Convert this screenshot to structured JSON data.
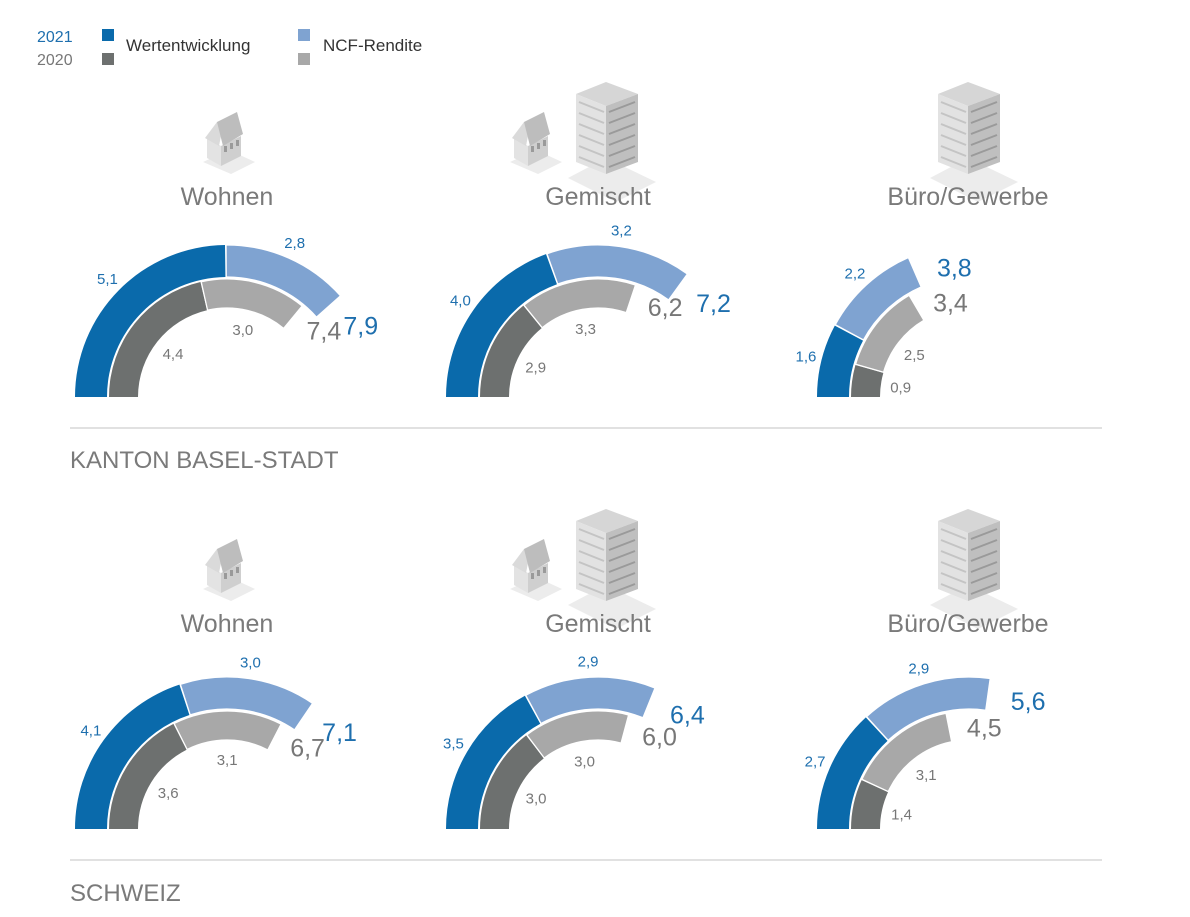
{
  "legend": {
    "year_current": "2021",
    "year_previous": "2020",
    "value_change_label": "Wertentwicklung",
    "ncf_label": "NCF-Rendite"
  },
  "colors": {
    "value_2021": "#0a6aab",
    "ncf_2021": "#7fa3d1",
    "value_2020": "#6d706f",
    "ncf_2020": "#a8a8a8",
    "label_2021": "#1e6fae",
    "label_2020": "#777777",
    "title": "#7a7a7a",
    "rule": "#cfcfcf"
  },
  "chart_data": [
    {
      "type": "radial-bar",
      "section": "KANTON BASEL-STADT",
      "title": "Wohnen",
      "icon": "house-icon",
      "series": [
        {
          "name": "2021",
          "value_change": 5.1,
          "ncf_yield": 2.8,
          "total": 7.9,
          "labels": {
            "value_change": "5,1",
            "ncf_yield": "2,8",
            "total": "7,9"
          }
        },
        {
          "name": "2020",
          "value_change": 4.4,
          "ncf_yield": 3.0,
          "total": 7.4,
          "labels": {
            "value_change": "4,4",
            "ncf_yield": "3,0",
            "total": "7,4"
          }
        }
      ]
    },
    {
      "type": "radial-bar",
      "section": "KANTON BASEL-STADT",
      "title": "Gemischt",
      "icon": "house-and-office-icon",
      "series": [
        {
          "name": "2021",
          "value_change": 4.0,
          "ncf_yield": 3.2,
          "total": 7.2,
          "labels": {
            "value_change": "4,0",
            "ncf_yield": "3,2",
            "total": "7,2"
          }
        },
        {
          "name": "2020",
          "value_change": 2.9,
          "ncf_yield": 3.3,
          "total": 6.2,
          "labels": {
            "value_change": "2,9",
            "ncf_yield": "3,3",
            "total": "6,2"
          }
        }
      ]
    },
    {
      "type": "radial-bar",
      "section": "KANTON BASEL-STADT",
      "title": "Büro/Gewerbe",
      "icon": "office-building-icon",
      "series": [
        {
          "name": "2021",
          "value_change": 1.6,
          "ncf_yield": 2.2,
          "total": 3.8,
          "labels": {
            "value_change": "1,6",
            "ncf_yield": "2,2",
            "total": "3,8"
          }
        },
        {
          "name": "2020",
          "value_change": 0.9,
          "ncf_yield": 2.5,
          "total": 3.4,
          "labels": {
            "value_change": "0,9",
            "ncf_yield": "2,5",
            "total": "3,4"
          }
        }
      ]
    },
    {
      "type": "radial-bar",
      "section": "SCHWEIZ",
      "title": "Wohnen",
      "icon": "house-icon",
      "series": [
        {
          "name": "2021",
          "value_change": 4.1,
          "ncf_yield": 3.0,
          "total": 7.1,
          "labels": {
            "value_change": "4,1",
            "ncf_yield": "3,0",
            "total": "7,1"
          }
        },
        {
          "name": "2020",
          "value_change": 3.6,
          "ncf_yield": 3.1,
          "total": 6.7,
          "labels": {
            "value_change": "3,6",
            "ncf_yield": "3,1",
            "total": "6,7"
          }
        }
      ]
    },
    {
      "type": "radial-bar",
      "section": "SCHWEIZ",
      "title": "Gemischt",
      "icon": "house-and-office-icon",
      "series": [
        {
          "name": "2021",
          "value_change": 3.5,
          "ncf_yield": 2.9,
          "total": 6.4,
          "labels": {
            "value_change": "3,5",
            "ncf_yield": "2,9",
            "total": "6,4"
          }
        },
        {
          "name": "2020",
          "value_change": 3.0,
          "ncf_yield": 3.0,
          "total": 6.0,
          "labels": {
            "value_change": "3,0",
            "ncf_yield": "3,0",
            "total": "6,0"
          }
        }
      ]
    },
    {
      "type": "radial-bar",
      "section": "SCHWEIZ",
      "title": "Büro/Gewerbe",
      "icon": "office-building-icon",
      "series": [
        {
          "name": "2021",
          "value_change": 2.7,
          "ncf_yield": 2.9,
          "total": 5.6,
          "labels": {
            "value_change": "2,7",
            "ncf_yield": "2,9",
            "total": "5,6"
          }
        },
        {
          "name": "2020",
          "value_change": 1.4,
          "ncf_yield": 3.1,
          "total": 4.5,
          "labels": {
            "value_change": "1,4",
            "ncf_yield": "3,1",
            "total": "4,5"
          }
        }
      ]
    }
  ],
  "sections": [
    {
      "label": "KANTON BASEL-STADT"
    },
    {
      "label": "SCHWEIZ"
    }
  ]
}
